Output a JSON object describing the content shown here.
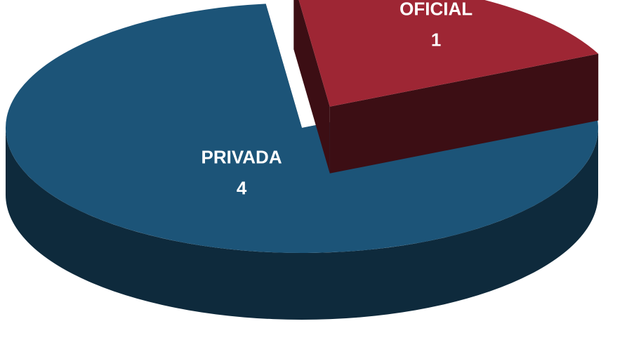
{
  "chart_data": {
    "type": "pie",
    "categories": [
      "PRIVADA",
      "OFICIAL"
    ],
    "values": [
      4,
      1
    ],
    "colors": [
      "#1c5478",
      "#9e2634"
    ],
    "explode": [
      false,
      true
    ]
  }
}
